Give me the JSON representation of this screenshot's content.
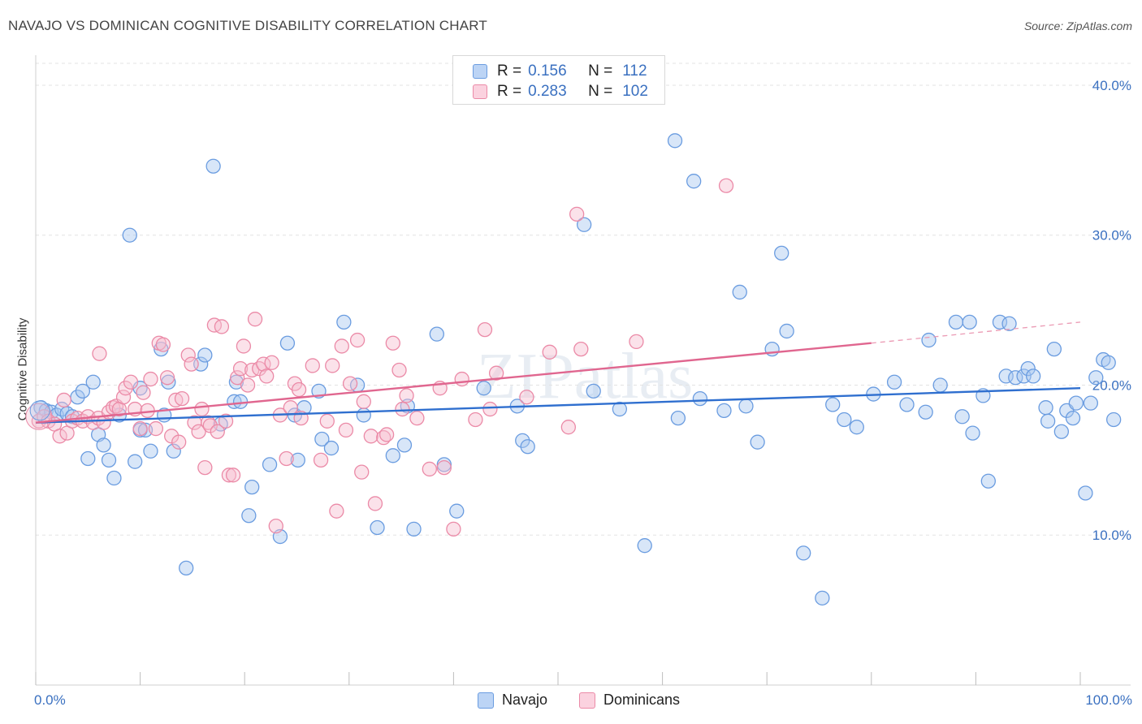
{
  "title": "NAVAJO VS DOMINICAN COGNITIVE DISABILITY CORRELATION CHART",
  "source": "Source: ZipAtlas.com",
  "watermark": "ZIPatlas",
  "legend_box": {
    "rows": [
      {
        "r_label": "R =",
        "r_value": "0.156",
        "n_label": "N =",
        "n_value": "112",
        "color": "#9dbfef",
        "border": "#6a9ce0"
      },
      {
        "r_label": "R =",
        "r_value": "0.283",
        "n_label": "N =",
        "n_value": "102",
        "color": "#f7b6c8",
        "border": "#eb8aa7"
      }
    ]
  },
  "chart_data": {
    "type": "scatter",
    "xlabel": "",
    "ylabel": "Cognitive Disability",
    "x_ticks": [
      "0.0%",
      "100.0%"
    ],
    "y_ticks": [
      "10.0%",
      "20.0%",
      "30.0%",
      "40.0%"
    ],
    "xlim": [
      0,
      100
    ],
    "ylim": [
      0,
      42
    ],
    "grid": true,
    "legend_position": "bottom",
    "series": [
      {
        "name": "Navajo",
        "color": "#6a9ce0",
        "fill": "#a8c8f0",
        "trend": {
          "x": [
            0,
            100
          ],
          "y": [
            17.5,
            19.8
          ]
        },
        "points": [
          [
            0.5,
            18.5
          ],
          [
            1,
            18.3
          ],
          [
            1.5,
            18.2
          ],
          [
            2,
            18
          ],
          [
            2.5,
            18.4
          ],
          [
            3,
            18.1
          ],
          [
            3.5,
            17.9
          ],
          [
            4,
            19.2
          ],
          [
            4.5,
            19.6
          ],
          [
            5,
            15.1
          ],
          [
            5.5,
            20.2
          ],
          [
            6,
            16.7
          ],
          [
            6.5,
            16
          ],
          [
            7,
            15
          ],
          [
            7.5,
            13.8
          ],
          [
            8,
            18
          ],
          [
            9,
            30
          ],
          [
            9.5,
            14.9
          ],
          [
            10,
            19.8
          ],
          [
            10,
            17
          ],
          [
            10.5,
            17
          ],
          [
            11,
            15.6
          ],
          [
            12,
            22.4
          ],
          [
            12.3,
            18
          ],
          [
            12.7,
            20.2
          ],
          [
            13.2,
            15.6
          ],
          [
            14.4,
            7.8
          ],
          [
            15.8,
            21.4
          ],
          [
            16.2,
            22
          ],
          [
            17,
            34.6
          ],
          [
            17.7,
            17.4
          ],
          [
            19,
            18.9
          ],
          [
            19.2,
            20.2
          ],
          [
            19.6,
            18.9
          ],
          [
            20.4,
            11.3
          ],
          [
            20.7,
            13.2
          ],
          [
            22.4,
            14.7
          ],
          [
            23.4,
            9.9
          ],
          [
            24.1,
            22.8
          ],
          [
            24.8,
            18
          ],
          [
            25.1,
            15
          ],
          [
            25.7,
            18.5
          ],
          [
            27.1,
            19.6
          ],
          [
            27.4,
            16.4
          ],
          [
            28.3,
            15.8
          ],
          [
            29.5,
            24.2
          ],
          [
            30.8,
            20
          ],
          [
            31.4,
            18
          ],
          [
            32.7,
            10.5
          ],
          [
            34.2,
            15.3
          ],
          [
            35.3,
            16
          ],
          [
            35.6,
            18.6
          ],
          [
            36.2,
            10.4
          ],
          [
            38.4,
            23.4
          ],
          [
            39.1,
            14.7
          ],
          [
            40.3,
            11.6
          ],
          [
            42.9,
            19.8
          ],
          [
            46.1,
            18.6
          ],
          [
            46.6,
            16.3
          ],
          [
            47.1,
            15.9
          ],
          [
            52.5,
            30.7
          ],
          [
            53.4,
            19.6
          ],
          [
            55.9,
            18.4
          ],
          [
            58.3,
            9.3
          ],
          [
            61.2,
            36.3
          ],
          [
            61.5,
            17.8
          ],
          [
            63,
            33.6
          ],
          [
            63.6,
            19.1
          ],
          [
            65.9,
            18.3
          ],
          [
            67.4,
            26.2
          ],
          [
            68,
            18.6
          ],
          [
            69.1,
            16.2
          ],
          [
            70.5,
            22.4
          ],
          [
            71.4,
            28.8
          ],
          [
            71.9,
            23.6
          ],
          [
            73.5,
            8.8
          ],
          [
            75.3,
            5.8
          ],
          [
            76.3,
            18.7
          ],
          [
            77.4,
            17.7
          ],
          [
            78.6,
            17.2
          ],
          [
            80.2,
            19.4
          ],
          [
            82.2,
            20.2
          ],
          [
            83.4,
            18.7
          ],
          [
            85.2,
            18.2
          ],
          [
            85.5,
            23
          ],
          [
            86.6,
            20
          ],
          [
            88.1,
            24.2
          ],
          [
            88.7,
            17.9
          ],
          [
            89.4,
            24.2
          ],
          [
            89.7,
            16.8
          ],
          [
            90.7,
            19.3
          ],
          [
            91.2,
            13.6
          ],
          [
            92.3,
            24.2
          ],
          [
            92.9,
            20.6
          ],
          [
            93.2,
            24.1
          ],
          [
            93.8,
            20.5
          ],
          [
            94.6,
            20.6
          ],
          [
            95,
            21.1
          ],
          [
            95.5,
            20.6
          ],
          [
            96.7,
            18.5
          ],
          [
            96.9,
            17.6
          ],
          [
            97.5,
            22.4
          ],
          [
            98.2,
            16.9
          ],
          [
            98.7,
            18.3
          ],
          [
            99.3,
            17.8
          ],
          [
            99.6,
            18.8
          ],
          [
            100.5,
            12.8
          ],
          [
            101,
            18.8
          ],
          [
            101.5,
            20.5
          ],
          [
            102.2,
            21.7
          ],
          [
            102.7,
            21.5
          ],
          [
            103.2,
            17.7
          ]
        ]
      },
      {
        "name": "Dominicans",
        "color": "#eb8aa7",
        "fill": "#f7bfd0",
        "trend": {
          "x": [
            0,
            80
          ],
          "y": [
            17.5,
            22.8
          ]
        },
        "trend_dashed": {
          "x": [
            80,
            100
          ],
          "y": [
            22.8,
            24.2
          ]
        },
        "points": [
          [
            0.3,
            17.6
          ],
          [
            0.8,
            17.9
          ],
          [
            1.2,
            17.6
          ],
          [
            1.8,
            17.4
          ],
          [
            2.3,
            16.6
          ],
          [
            2.7,
            19
          ],
          [
            3,
            16.8
          ],
          [
            3.5,
            17.6
          ],
          [
            4,
            17.8
          ],
          [
            4.5,
            17.6
          ],
          [
            5,
            17.9
          ],
          [
            5.5,
            17.5
          ],
          [
            6,
            17.8
          ],
          [
            6.1,
            22.1
          ],
          [
            6.5,
            17.5
          ],
          [
            7,
            18.2
          ],
          [
            7.4,
            18.5
          ],
          [
            7.7,
            18.6
          ],
          [
            8,
            18.4
          ],
          [
            8.4,
            19.2
          ],
          [
            8.6,
            19.8
          ],
          [
            9.1,
            20.2
          ],
          [
            9.5,
            18.4
          ],
          [
            10,
            17.1
          ],
          [
            10.3,
            19.5
          ],
          [
            10.7,
            18.3
          ],
          [
            11,
            20.4
          ],
          [
            11.5,
            17.1
          ],
          [
            11.8,
            22.8
          ],
          [
            12.2,
            22.7
          ],
          [
            12.6,
            20.5
          ],
          [
            13,
            16.6
          ],
          [
            13.4,
            19
          ],
          [
            13.7,
            16.2
          ],
          [
            14,
            19.1
          ],
          [
            14.6,
            22
          ],
          [
            14.9,
            21.4
          ],
          [
            15.2,
            17.5
          ],
          [
            15.6,
            16.9
          ],
          [
            15.9,
            18.4
          ],
          [
            16.2,
            14.5
          ],
          [
            16.5,
            17.5
          ],
          [
            16.7,
            17.3
          ],
          [
            17.1,
            24
          ],
          [
            17.4,
            16.9
          ],
          [
            17.8,
            23.9
          ],
          [
            18.2,
            17.6
          ],
          [
            18.5,
            14
          ],
          [
            18.9,
            14
          ],
          [
            19.3,
            20.5
          ],
          [
            19.6,
            21.1
          ],
          [
            19.9,
            22.6
          ],
          [
            20.3,
            20
          ],
          [
            20.7,
            21
          ],
          [
            21,
            24.4
          ],
          [
            21.4,
            21.1
          ],
          [
            21.8,
            21.4
          ],
          [
            22.1,
            20.6
          ],
          [
            22.6,
            21.5
          ],
          [
            23,
            10.6
          ],
          [
            23.4,
            18
          ],
          [
            24,
            15.1
          ],
          [
            24.4,
            18.5
          ],
          [
            24.8,
            20.1
          ],
          [
            25.2,
            19.7
          ],
          [
            25.4,
            17.8
          ],
          [
            26.5,
            21.3
          ],
          [
            27.3,
            15
          ],
          [
            27.9,
            17.6
          ],
          [
            28.4,
            21.3
          ],
          [
            28.8,
            11.6
          ],
          [
            29.3,
            22.6
          ],
          [
            29.7,
            17
          ],
          [
            30.1,
            20.1
          ],
          [
            30.8,
            23
          ],
          [
            31.2,
            14.2
          ],
          [
            31.4,
            18.9
          ],
          [
            32.1,
            16.6
          ],
          [
            32.5,
            12.1
          ],
          [
            33.3,
            16.5
          ],
          [
            33.6,
            16.7
          ],
          [
            34.2,
            22.8
          ],
          [
            34.8,
            21
          ],
          [
            35.1,
            18.4
          ],
          [
            35.5,
            19.3
          ],
          [
            36.5,
            17.8
          ],
          [
            37.7,
            14.4
          ],
          [
            38.7,
            19.8
          ],
          [
            39.1,
            14.5
          ],
          [
            40,
            10.4
          ],
          [
            40.8,
            20.4
          ],
          [
            42.1,
            17.7
          ],
          [
            43,
            23.7
          ],
          [
            43.5,
            18.4
          ],
          [
            44.1,
            20.8
          ],
          [
            47,
            19.2
          ],
          [
            49.2,
            22.2
          ],
          [
            51,
            17.2
          ],
          [
            51.8,
            31.4
          ],
          [
            52.2,
            22.4
          ],
          [
            57.5,
            22.9
          ],
          [
            66.1,
            33.3
          ]
        ]
      }
    ]
  }
}
